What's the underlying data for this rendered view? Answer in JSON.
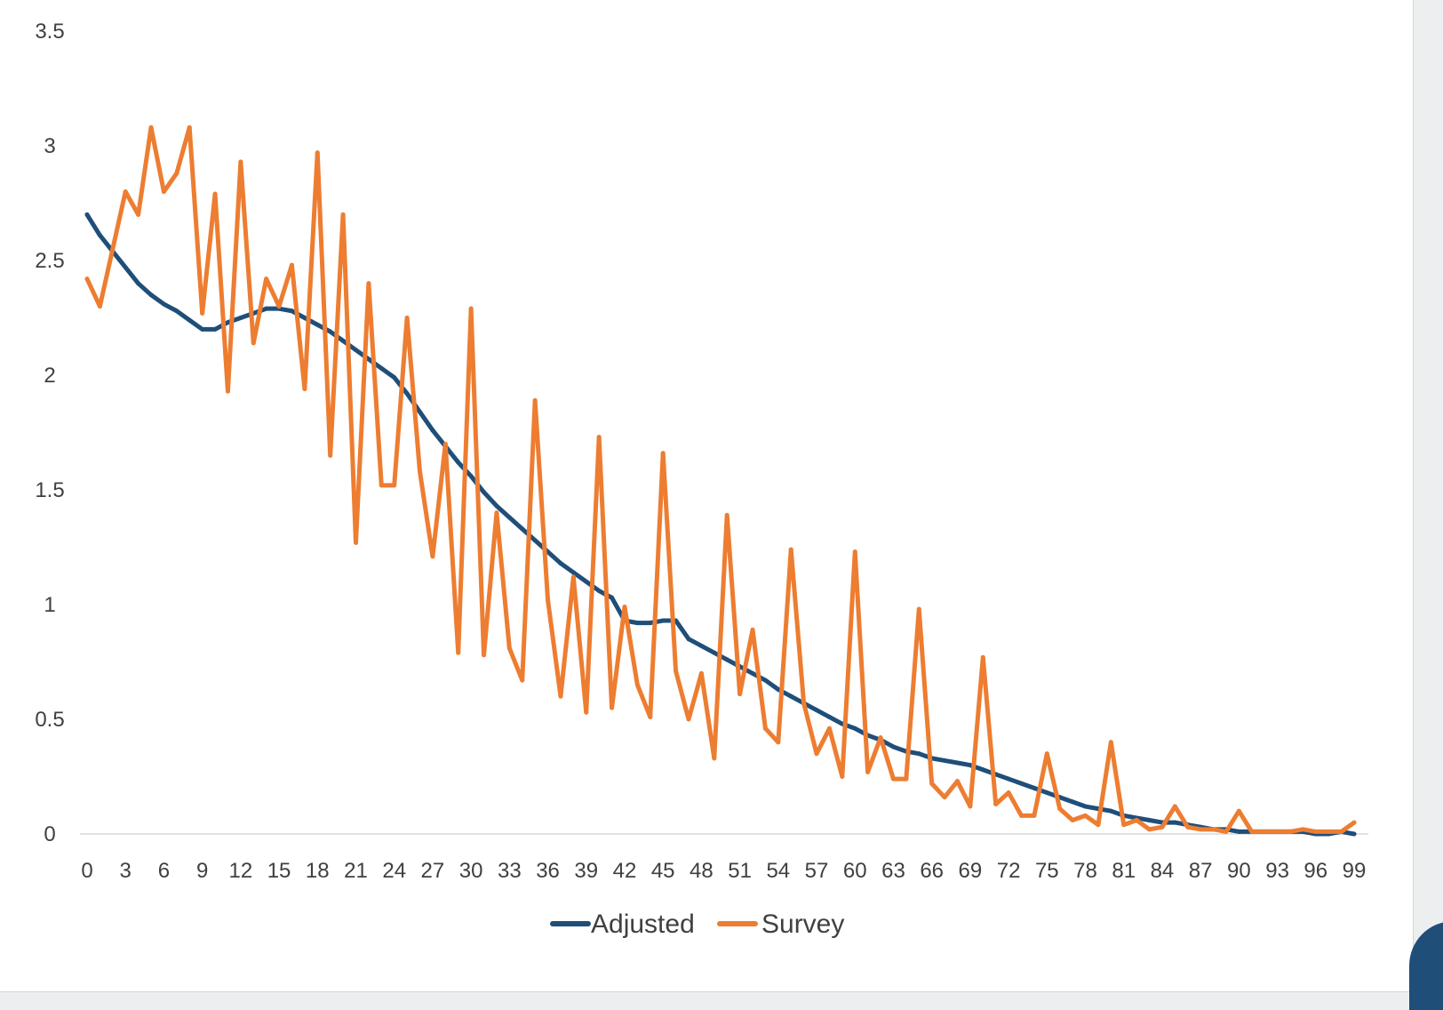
{
  "chart_data": {
    "type": "line",
    "title": "",
    "xlabel": "",
    "ylabel": "",
    "ylim": [
      0,
      3.5
    ],
    "y_ticks": [
      "0",
      "0.5",
      "1",
      "1.5",
      "2",
      "2.5",
      "3",
      "3.5"
    ],
    "x_ticks": [
      "0",
      "3",
      "6",
      "9",
      "12",
      "15",
      "18",
      "21",
      "24",
      "27",
      "30",
      "33",
      "36",
      "39",
      "42",
      "45",
      "48",
      "51",
      "54",
      "57",
      "60",
      "63",
      "66",
      "69",
      "72",
      "75",
      "78",
      "81",
      "84",
      "87",
      "90",
      "93",
      "96",
      "99"
    ],
    "x": [
      0,
      1,
      2,
      3,
      4,
      5,
      6,
      7,
      8,
      9,
      10,
      11,
      12,
      13,
      14,
      15,
      16,
      17,
      18,
      19,
      20,
      21,
      22,
      23,
      24,
      25,
      26,
      27,
      28,
      29,
      30,
      31,
      32,
      33,
      34,
      35,
      36,
      37,
      38,
      39,
      40,
      41,
      42,
      43,
      44,
      45,
      46,
      47,
      48,
      49,
      50,
      51,
      52,
      53,
      54,
      55,
      56,
      57,
      58,
      59,
      60,
      61,
      62,
      63,
      64,
      65,
      66,
      67,
      68,
      69,
      70,
      71,
      72,
      73,
      74,
      75,
      76,
      77,
      78,
      79,
      80,
      81,
      82,
      83,
      84,
      85,
      86,
      87,
      88,
      89,
      90,
      91,
      92,
      93,
      94,
      95,
      96,
      97,
      98,
      99
    ],
    "grid": false,
    "legend_position": "bottom",
    "series": [
      {
        "name": "Adjusted",
        "color": "#1f4e79",
        "values": [
          2.7,
          2.61,
          2.54,
          2.47,
          2.4,
          2.35,
          2.31,
          2.28,
          2.24,
          2.2,
          2.2,
          2.23,
          2.25,
          2.27,
          2.29,
          2.29,
          2.28,
          2.25,
          2.22,
          2.19,
          2.15,
          2.11,
          2.07,
          2.03,
          1.99,
          1.92,
          1.84,
          1.76,
          1.69,
          1.62,
          1.56,
          1.49,
          1.43,
          1.38,
          1.33,
          1.28,
          1.23,
          1.18,
          1.14,
          1.1,
          1.06,
          1.03,
          0.93,
          0.92,
          0.92,
          0.93,
          0.93,
          0.85,
          0.82,
          0.79,
          0.76,
          0.73,
          0.7,
          0.67,
          0.63,
          0.6,
          0.57,
          0.54,
          0.51,
          0.48,
          0.46,
          0.43,
          0.41,
          0.38,
          0.36,
          0.35,
          0.33,
          0.32,
          0.31,
          0.3,
          0.28,
          0.26,
          0.24,
          0.22,
          0.2,
          0.18,
          0.16,
          0.14,
          0.12,
          0.11,
          0.1,
          0.08,
          0.07,
          0.06,
          0.05,
          0.05,
          0.04,
          0.03,
          0.02,
          0.02,
          0.01,
          0.01,
          0.01,
          0.01,
          0.01,
          0.01,
          0.0,
          0.0,
          0.01,
          0.0
        ]
      },
      {
        "name": "Survey",
        "color": "#ed7d31",
        "values": [
          2.42,
          2.3,
          2.55,
          2.8,
          2.7,
          3.08,
          2.8,
          2.88,
          3.08,
          2.27,
          2.79,
          1.93,
          2.93,
          2.14,
          2.42,
          2.3,
          2.48,
          1.94,
          2.97,
          1.65,
          2.7,
          1.27,
          2.4,
          1.52,
          1.52,
          2.25,
          1.58,
          1.21,
          1.7,
          0.79,
          2.29,
          0.78,
          1.4,
          0.81,
          0.67,
          1.89,
          1.02,
          0.6,
          1.12,
          0.53,
          1.73,
          0.55,
          0.99,
          0.65,
          0.51,
          1.66,
          0.71,
          0.5,
          0.7,
          0.33,
          1.39,
          0.61,
          0.89,
          0.46,
          0.4,
          1.24,
          0.57,
          0.35,
          0.46,
          0.25,
          1.23,
          0.27,
          0.42,
          0.24,
          0.24,
          0.98,
          0.22,
          0.16,
          0.23,
          0.12,
          0.77,
          0.13,
          0.18,
          0.08,
          0.08,
          0.35,
          0.11,
          0.06,
          0.08,
          0.04,
          0.4,
          0.04,
          0.06,
          0.02,
          0.03,
          0.12,
          0.03,
          0.02,
          0.02,
          0.01,
          0.1,
          0.01,
          0.01,
          0.01,
          0.01,
          0.02,
          0.01,
          0.01,
          0.01,
          0.05
        ]
      }
    ]
  }
}
